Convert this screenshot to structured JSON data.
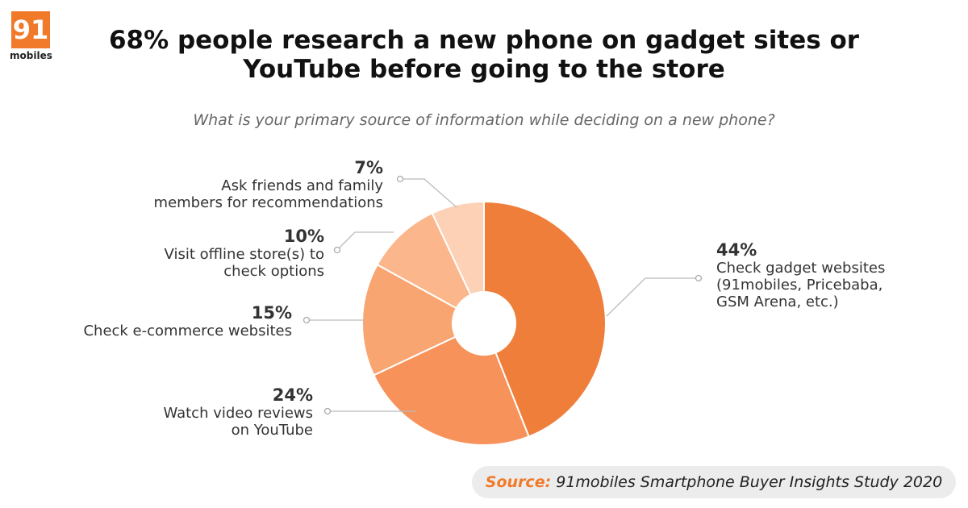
{
  "logo": {
    "number": "91",
    "name": "mobiles"
  },
  "source": {
    "label": "Source:",
    "text": "91mobiles Smartphone Buyer Insights Study 2020"
  },
  "chart_data": {
    "type": "donut",
    "title": "68% people research a new phone on gadget sites or\nYouTube before going to the store",
    "subtitle": "What is your primary source of information while deciding on a new phone?",
    "categories": [
      "Check gadget websites\n(91mobiles, Pricebaba,\nGSM Arena, etc.)",
      "Watch video reviews\non YouTube",
      "Check e-commerce websites",
      "Visit offline store(s) to\ncheck options",
      "Ask friends and family\nmembers for recommendations"
    ],
    "values": [
      44,
      24,
      15,
      10,
      7
    ],
    "value_labels": [
      "44%",
      "24%",
      "15%",
      "10%",
      "7%"
    ],
    "colors": [
      "#ef7e3b",
      "#f7925a",
      "#f9a571",
      "#fbb68c",
      "#fdd1b6"
    ]
  }
}
